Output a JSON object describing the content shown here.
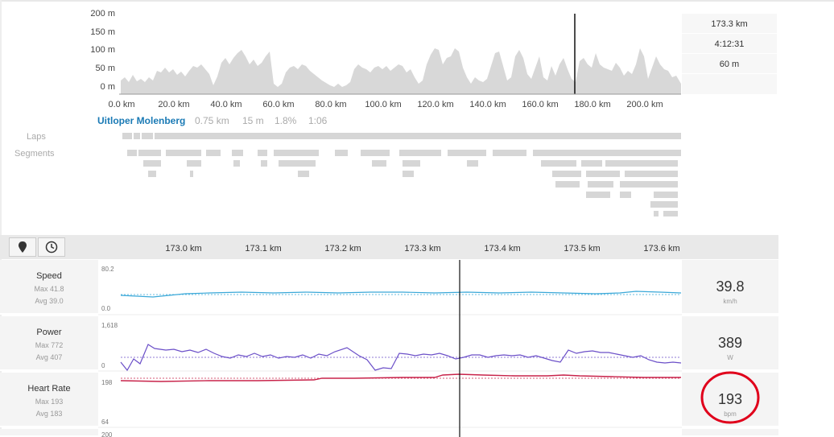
{
  "elevation": {
    "y_labels": [
      "200 m",
      "150 m",
      "100 m",
      "50 m",
      "0 m"
    ],
    "x_labels": [
      "0.0 km",
      "20.0 km",
      "40.0 km",
      "60.0 km",
      "80.0 km",
      "100.0 km",
      "120.0 km",
      "140.0 km",
      "160.0 km",
      "180.0 km",
      "200.0 km"
    ],
    "stats": [
      "173.3 km",
      "4:12:31",
      "60 m"
    ]
  },
  "segment": {
    "name": "Uitloper Molenberg",
    "distance": "0.75 km",
    "elevation": "15 m",
    "grade": "1.8%",
    "time": "1:06"
  },
  "sidebar": {
    "laps": "Laps",
    "segments": "Segments"
  },
  "toolbar": {
    "map_icon": "map-pin-icon",
    "time_icon": "clock-icon",
    "km_labels": [
      "173.0 km",
      "173.1 km",
      "173.2 km",
      "173.3 km",
      "173.4 km",
      "173.5 km",
      "173.6 km"
    ]
  },
  "streams": [
    {
      "name": "Speed",
      "max": "Max 41.8",
      "avg": "Avg 39.0",
      "top": "80.2",
      "bottom": "0.0",
      "value": "39.8",
      "unit": "km/h",
      "color": "#3aa8d8"
    },
    {
      "name": "Power",
      "max": "Max 772",
      "avg": "Avg 407",
      "top": "1,618",
      "bottom": "0",
      "value": "389",
      "unit": "W",
      "color": "#6b4fc8"
    },
    {
      "name": "Heart Rate",
      "max": "Max 193",
      "avg": "Avg 183",
      "top": "198",
      "bottom": "64",
      "value": "193",
      "unit": "bpm",
      "color": "#c8234a"
    }
  ],
  "next_stream_top": "200",
  "annotation_color": "#e0001b"
}
